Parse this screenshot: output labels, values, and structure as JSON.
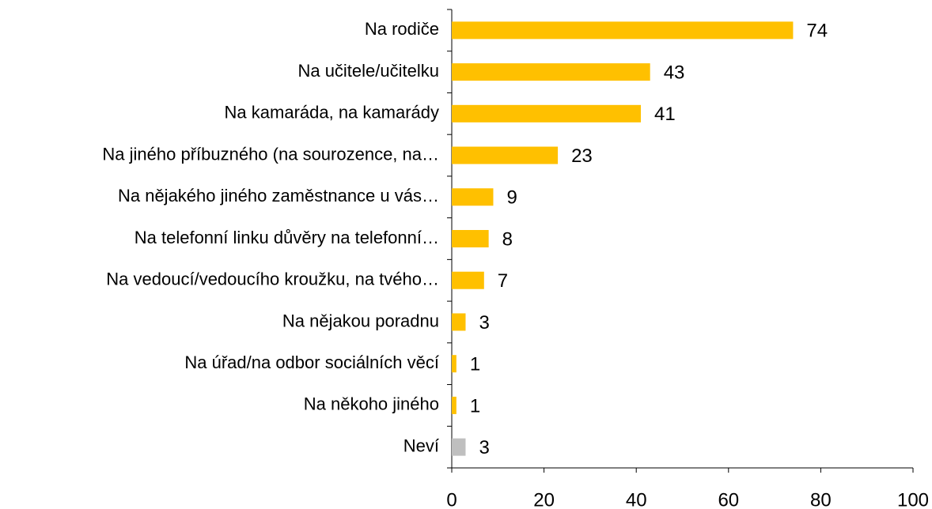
{
  "chart_data": {
    "type": "barh",
    "categories": [
      "Na rodiče",
      "Na učitele/učitelku",
      "Na kamaráda, na kamarády",
      "Na jiného příbuzného (na sourozence, na…",
      "Na nějakého jiného zaměstnance u vás…",
      "Na telefonní linku důvěry na telefonní…",
      "Na vedoucí/vedoucího kroužku, na tvého…",
      "Na nějakou poradnu",
      "Na úřad/na odbor sociálních věcí",
      "Na někoho jiného",
      "Neví"
    ],
    "values": [
      74,
      43,
      41,
      23,
      9,
      8,
      7,
      3,
      1,
      1,
      3
    ],
    "colors": [
      "#ffc000",
      "#ffc000",
      "#ffc000",
      "#ffc000",
      "#ffc000",
      "#ffc000",
      "#ffc000",
      "#ffc000",
      "#ffc000",
      "#ffc000",
      "#bfbfbf"
    ],
    "xlim": [
      0,
      100
    ],
    "xticks": [
      0,
      20,
      40,
      60,
      80,
      100
    ]
  }
}
